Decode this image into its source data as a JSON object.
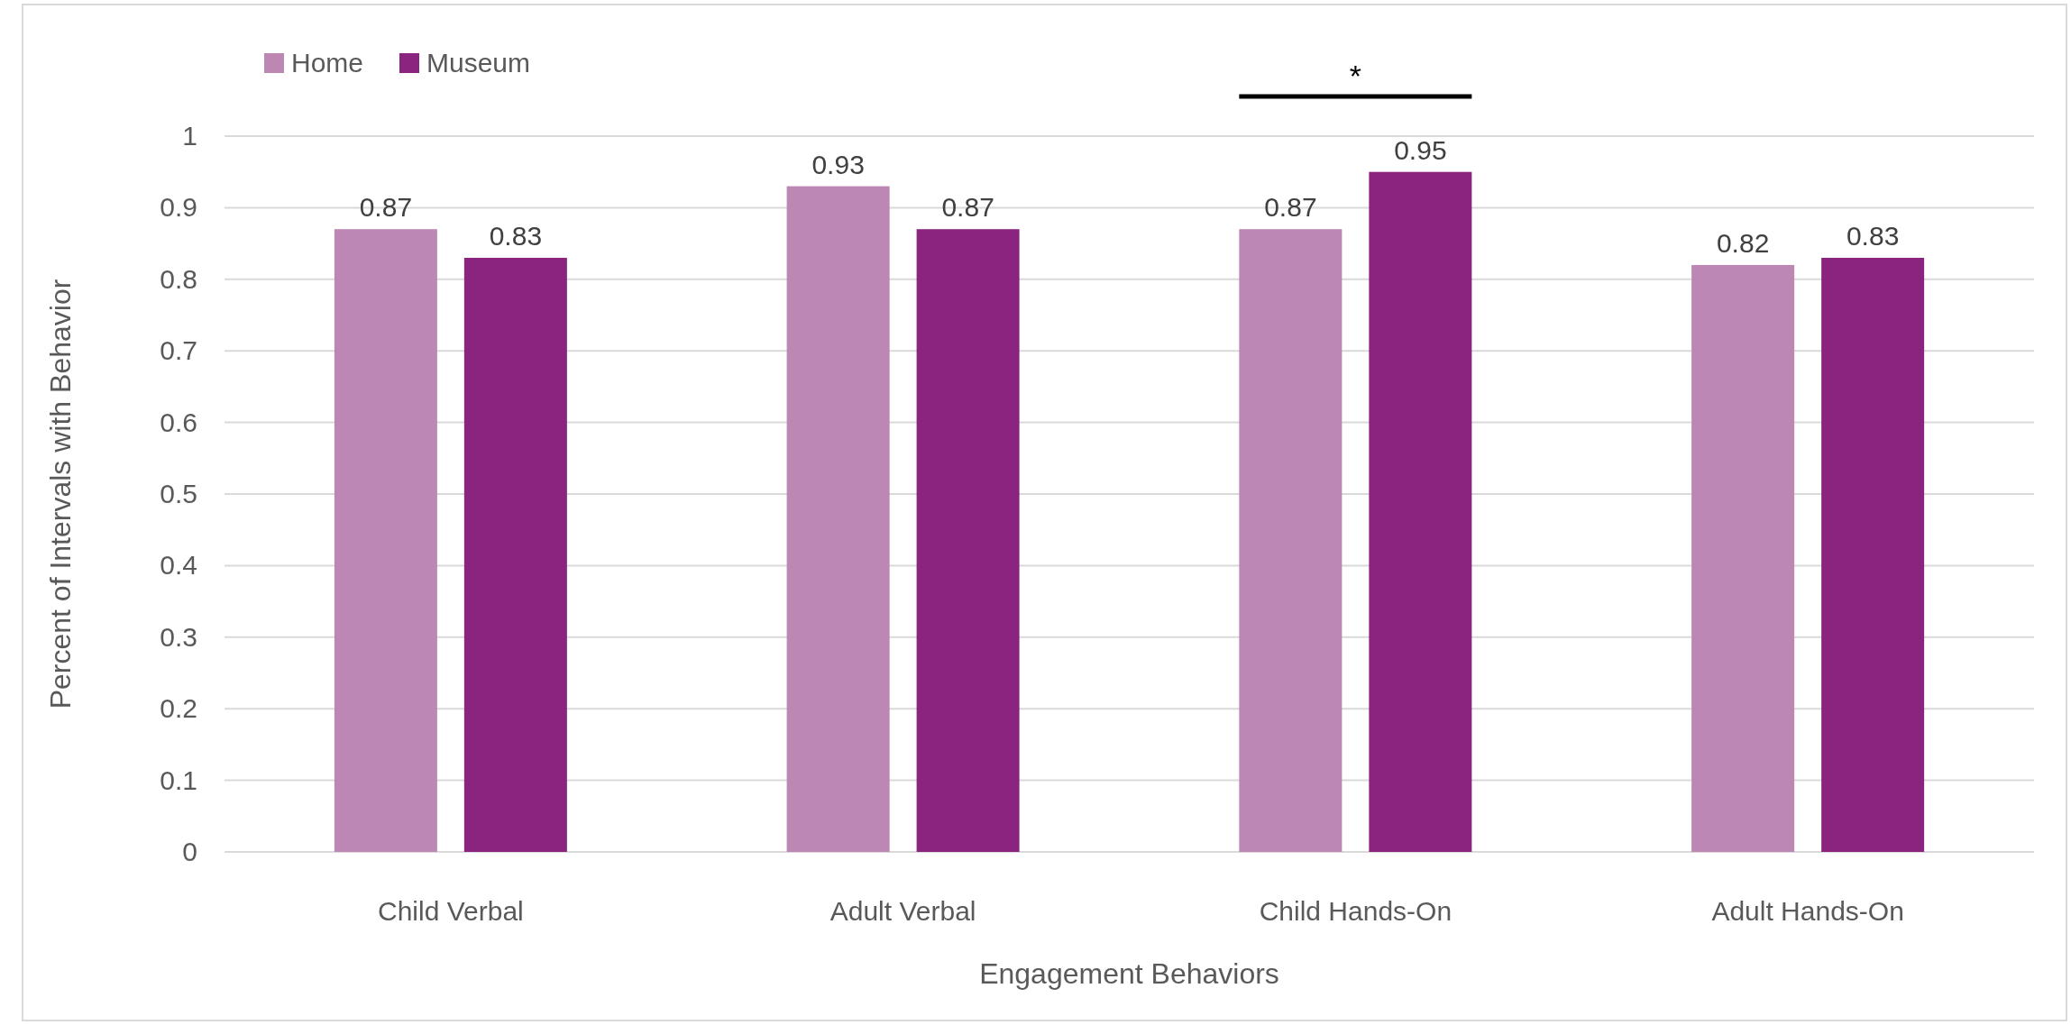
{
  "chart_data": {
    "type": "bar",
    "xlabel": "Engagement Behaviors",
    "ylabel": "Percent of Intervals with Behavior",
    "categories": [
      "Child Verbal",
      "Adult Verbal",
      "Child Hands-On",
      "Adult Hands-On"
    ],
    "series": [
      {
        "name": "Home",
        "color": "#bc87b3",
        "values": [
          0.87,
          0.93,
          0.87,
          0.82
        ]
      },
      {
        "name": "Museum",
        "color": "#8b247e",
        "values": [
          0.83,
          0.87,
          0.95,
          0.83
        ]
      }
    ],
    "ylim": [
      0,
      1
    ],
    "yticks": [
      0,
      0.1,
      0.2,
      0.3,
      0.4,
      0.5,
      0.6,
      0.7,
      0.8,
      0.9,
      1
    ],
    "grid": "y",
    "legend": "top left",
    "data_labels": true,
    "annotations": [
      "*"
    ]
  }
}
